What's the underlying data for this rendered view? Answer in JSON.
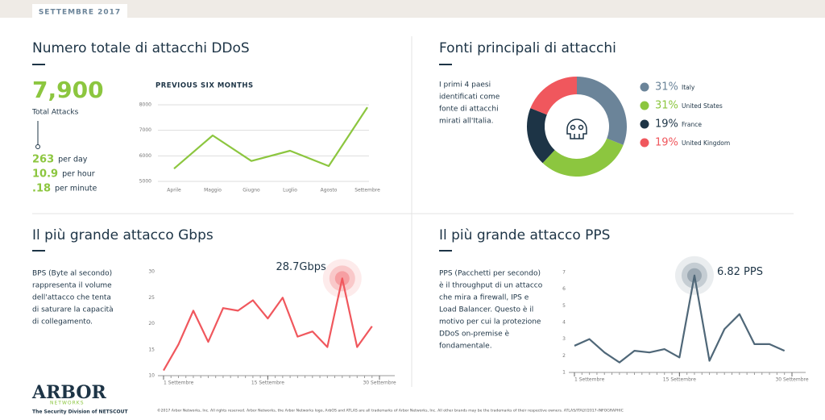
{
  "header": {
    "tag": "SETTEMBRE 2017"
  },
  "sections": {
    "total": {
      "title": "Numero totale di attacchi DDoS",
      "big": "7,900",
      "big_label": "Total Attacks",
      "stats": [
        {
          "value": "263",
          "unit": "per day"
        },
        {
          "value": "10.9",
          "unit": "per hour"
        },
        {
          "value": ".18",
          "unit": "per minute"
        }
      ]
    },
    "sources": {
      "title": "Fonti principali di attacchi",
      "text": [
        "I primi 4 paesi",
        "identificati come",
        "fonte di attacchi",
        "mirati all'Italia."
      ]
    },
    "gbps": {
      "title": "Il più grande attacco Gbps",
      "text": [
        "BPS (Byte al secondo)",
        "rappresenta il volume",
        "dell'attacco che tenta",
        "di  saturare la capacità",
        "di collegamento."
      ]
    },
    "pps": {
      "title": "Il più grande attacco PPS",
      "text": [
        "PPS (Pacchetti per secondo)",
        "è il throughput di un attacco",
        "che mira a firewall, IPS e",
        "Load Balancer. Questo è il",
        "motivo per cui la protezione",
        "DDoS on-premise è",
        "fondamentale."
      ]
    }
  },
  "chart_data": [
    {
      "type": "line",
      "title": "PREVIOUS SIX MONTHS",
      "categories": [
        "Aprile",
        "Maggio",
        "Giugno",
        "Luglio",
        "Agosto",
        "Settembre"
      ],
      "series": [
        {
          "color": "#8cc63f",
          "values": [
            5500,
            6800,
            5800,
            6200,
            5600,
            7900
          ]
        }
      ],
      "ylim": [
        5000,
        8000
      ],
      "yticks": [
        5000,
        6000,
        7000,
        8000
      ],
      "grid": true
    },
    {
      "type": "pie",
      "categories": [
        "Italy",
        "United States",
        "France",
        "United Kingdom"
      ],
      "values": [
        31,
        31,
        19,
        19
      ],
      "value_labels": [
        "31%",
        "31%",
        "19%",
        "19%"
      ],
      "colors": [
        "#6b8499",
        "#8cc63f",
        "#1d3446",
        "#f0575d"
      ]
    },
    {
      "type": "line",
      "annotation": "28.7Gbps",
      "x": [
        1,
        3,
        5,
        7,
        9,
        11,
        13,
        15,
        17,
        19,
        21,
        23,
        25,
        27,
        29
      ],
      "series": [
        {
          "color": "#f0575d",
          "values": [
            11,
            16,
            22.5,
            16.5,
            23,
            22.5,
            24.5,
            21,
            25,
            17.5,
            18.5,
            15.5,
            28.7,
            15.5,
            19.5
          ]
        }
      ],
      "xlim": [
        1,
        30
      ],
      "xticks": [
        {
          "value": 1,
          "label": "1 Settembre"
        },
        {
          "value": 15,
          "label": "15 Settembre"
        },
        {
          "value": 30,
          "label": "30 Settembre"
        }
      ],
      "ylim": [
        10,
        30
      ],
      "yticks": [
        10,
        15,
        20,
        25,
        30
      ]
    },
    {
      "type": "line",
      "annotation": "6.82 PPS",
      "x": [
        1,
        3,
        5,
        7,
        9,
        11,
        13,
        15,
        17,
        19,
        21,
        23,
        25,
        27,
        29
      ],
      "series": [
        {
          "color": "#4f6778",
          "values": [
            2.6,
            3.0,
            2.2,
            1.6,
            2.3,
            2.2,
            2.4,
            1.9,
            6.82,
            1.7,
            3.6,
            4.5,
            2.7,
            2.7,
            2.3
          ]
        }
      ],
      "xlim": [
        1,
        30
      ],
      "xticks": [
        {
          "value": 1,
          "label": "1 Settembre"
        },
        {
          "value": 15,
          "label": "15 Settembre"
        },
        {
          "value": 30,
          "label": "30 Settembre"
        }
      ],
      "ylim": [
        1,
        7
      ],
      "yticks": [
        1,
        2,
        3,
        4,
        5,
        6,
        7
      ]
    }
  ],
  "footer": {
    "logo": "ARBOR",
    "logo_sub": "NETWORKS",
    "division": "The Security Division of NETSCOUT",
    "legal": "©2017 Arbor Networks, Inc. All rights reserved. Arbor Networks, the Arbor Networks logo, ArbOS and ATLAS are all trademarks of Arbor Networks, Inc. All other brands may be the trademarks of their respective owners.   ATLAS/ITALY/2017-INFOGRAPHIC"
  }
}
